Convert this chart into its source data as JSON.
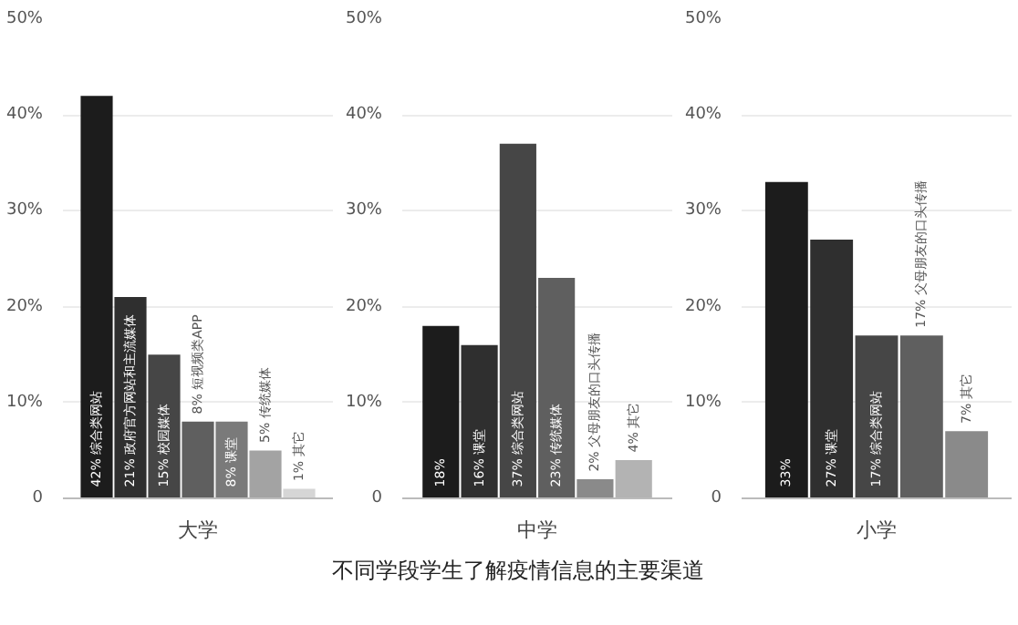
{
  "chart_data": [
    {
      "type": "bar",
      "xlabel": "大学",
      "categories": [
        "综合类网站",
        "政府官方网站和主流媒体",
        "校园媒体",
        "短视频类APP",
        "课堂",
        "传统媒体",
        "其它"
      ],
      "values": [
        42,
        21,
        15,
        8,
        8,
        5,
        1
      ],
      "value_labels": [
        "42%",
        "21%",
        "15%",
        "8%",
        "8%",
        "5%",
        "1%"
      ],
      "colors": [
        "#1c1c1c",
        "#2f2f2f",
        "#464646",
        "#5f5f5f",
        "#7a7a7a",
        "#a3a3a3",
        "#d6d6d6"
      ],
      "ylim": [
        0,
        50
      ],
      "yticks": [
        {
          "value": 0,
          "label": "0"
        },
        {
          "value": 10,
          "label": "10%"
        },
        {
          "value": 20,
          "label": "20%"
        },
        {
          "value": 30,
          "label": "30%"
        },
        {
          "value": 40,
          "label": "40%"
        },
        {
          "value": 50,
          "label": "50%"
        }
      ],
      "grid": "y"
    },
    {
      "type": "bar",
      "xlabel": "中学",
      "categories": [
        null,
        "课堂",
        "综合类网站",
        "传统媒体",
        "父母朋友的口头传播",
        "其它"
      ],
      "values": [
        18,
        16,
        37,
        23,
        2,
        4
      ],
      "value_labels": [
        "18%",
        "16%",
        "37%",
        "23%",
        "2%",
        "4%"
      ],
      "colors": [
        "#1c1c1c",
        "#2f2f2f",
        "#464646",
        "#5f5f5f",
        "#8a8a8a",
        "#b3b3b3"
      ],
      "ylim": [
        0,
        50
      ],
      "yticks": [
        {
          "value": 0,
          "label": "0"
        },
        {
          "value": 10,
          "label": "10%"
        },
        {
          "value": 20,
          "label": "20%"
        },
        {
          "value": 30,
          "label": "30%"
        },
        {
          "value": 40,
          "label": "40%"
        },
        {
          "value": 50,
          "label": "50%"
        }
      ],
      "grid": "y",
      "title": "不同学段学生了解疫情信息的主要渠道"
    },
    {
      "type": "bar",
      "xlabel": "小学",
      "categories": [
        null,
        "课堂",
        "综合类网站",
        "父母朋友的口头传播",
        "其它"
      ],
      "values": [
        33,
        27,
        17,
        17,
        7
      ],
      "value_labels": [
        "33%",
        "27%",
        "17%",
        "17%",
        "7%"
      ],
      "colors": [
        "#1c1c1c",
        "#2f2f2f",
        "#464646",
        "#5f5f5f",
        "#8a8a8a"
      ],
      "ylim": [
        0,
        50
      ],
      "yticks": [
        {
          "value": 0,
          "label": "0"
        },
        {
          "value": 10,
          "label": "10%"
        },
        {
          "value": 20,
          "label": "20%"
        },
        {
          "value": 30,
          "label": "30%"
        },
        {
          "value": 40,
          "label": "40%"
        },
        {
          "value": 50,
          "label": "50%"
        }
      ],
      "grid": "y"
    }
  ]
}
